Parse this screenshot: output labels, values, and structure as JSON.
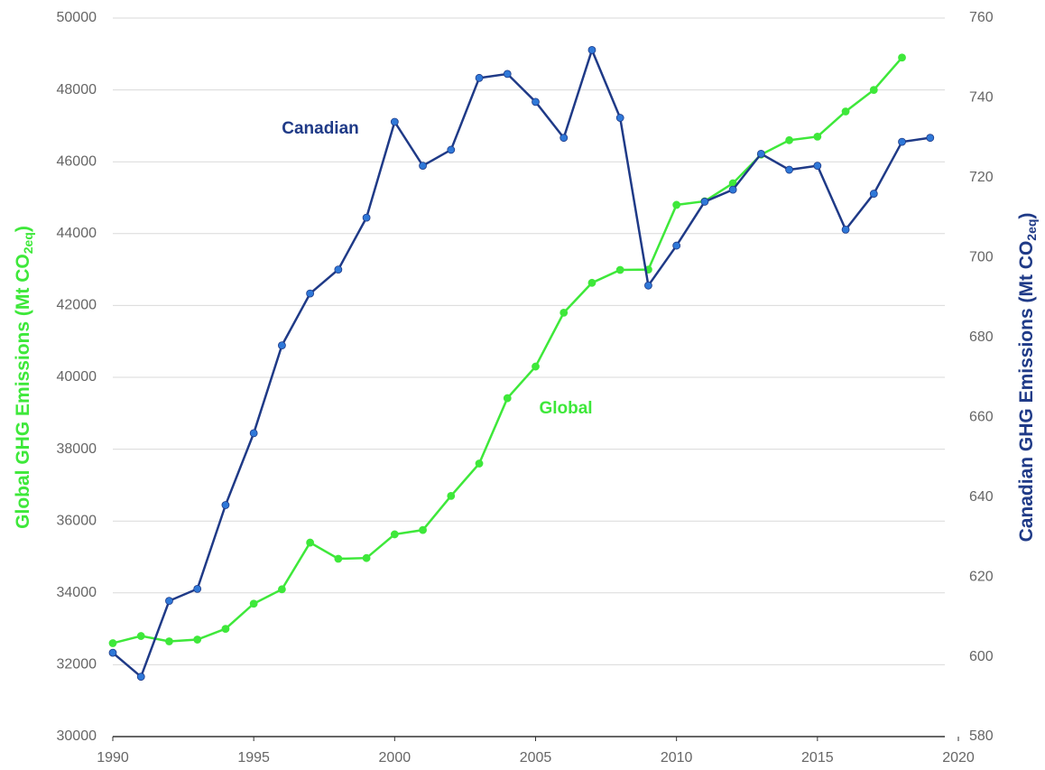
{
  "chart_data": {
    "type": "line",
    "x": [
      1990,
      1991,
      1992,
      1993,
      1994,
      1995,
      1996,
      1997,
      1998,
      1999,
      2000,
      2001,
      2002,
      2003,
      2004,
      2005,
      2006,
      2007,
      2008,
      2009,
      2010,
      2011,
      2012,
      2013,
      2014,
      2015,
      2016,
      2017,
      2018,
      2019
    ],
    "xlim": [
      1990,
      2020
    ],
    "xticks": [
      1990,
      1995,
      2000,
      2005,
      2010,
      2015,
      2020
    ],
    "ylim": [
      30000,
      50000
    ],
    "yticks": [
      30000,
      32000,
      34000,
      36000,
      38000,
      40000,
      42000,
      44000,
      46000,
      48000,
      50000
    ],
    "y2lim": [
      580,
      760
    ],
    "y2ticks": [
      580,
      600,
      620,
      640,
      660,
      680,
      700,
      720,
      740,
      760
    ],
    "ylabel": [
      "Global GHG Emissions (Mt CO",
      "2eq",
      ")"
    ],
    "y2label": [
      "Canadian GHG Emissions (Mt CO",
      "2eq",
      ")"
    ],
    "grid": true,
    "series": [
      {
        "name": "Global",
        "color": "#3ee83a",
        "marker_color": "#3ee83a",
        "values": [
          32600,
          32800,
          32650,
          32700,
          33000,
          33700,
          34100,
          35400,
          34950,
          34970,
          35630,
          35750,
          36700,
          37600,
          39420,
          40300,
          41800,
          42630,
          42990,
          43000,
          44800,
          44900,
          45400,
          46200,
          46600,
          46700,
          47400,
          48000,
          48900,
          null
        ]
      },
      {
        "name": "Canadian",
        "color": "#1f3a87",
        "marker_color": "#2f78d8",
        "axis": "y2",
        "values": [
          601,
          595,
          614,
          617,
          638,
          656,
          678,
          691,
          697,
          710,
          734,
          723,
          727,
          745,
          746,
          739,
          730,
          752,
          735,
          693,
          703,
          714,
          717,
          726,
          722,
          723,
          707,
          716,
          729,
          730
        ]
      }
    ],
    "annotations": [
      {
        "text": "Canadian",
        "series": 1
      },
      {
        "text": "Global",
        "series": 0
      }
    ]
  }
}
